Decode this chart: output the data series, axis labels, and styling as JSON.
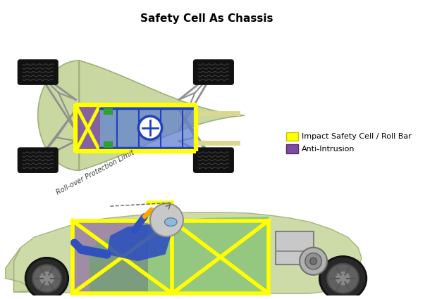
{
  "title": "Safety Cell As Chassis",
  "title_fontsize": 11,
  "title_fontweight": "bold",
  "bg_color": "#ffffff",
  "yellow": "#FFFF00",
  "yellow_edge": "#C8C800",
  "purple": "#7B4CA0",
  "light_green": "#C8D8A0",
  "light_green_edge": "#A0B078",
  "gray": "#A0A0A0",
  "dark_gray": "#303030",
  "blue": "#2040C0",
  "blue_light": "#6080D0",
  "green": "#30A030",
  "legend_yellow": "#FFFF00",
  "legend_purple": "#7B4CA0",
  "legend_label1": "Impact Safety Cell / Roll Bar",
  "legend_label2": "Anti-Intrusion"
}
